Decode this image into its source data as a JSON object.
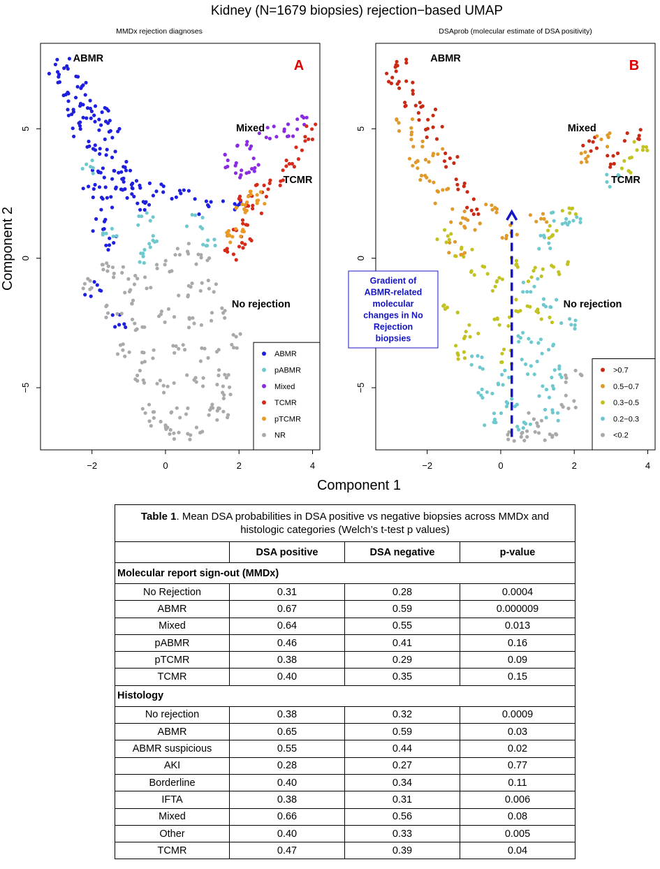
{
  "figure": {
    "title": "Kidney (N=1679 biopsies) rejection−based UMAP",
    "shared_xlabel": "Component 1",
    "shared_ylabel": "Component 2"
  },
  "chart_data": [
    {
      "type": "scatter",
      "panel_letter": "A",
      "subtitle": "MMDx rejection diagnoses",
      "xlabel": "Component 1",
      "ylabel": "Component 2",
      "xlim": [
        -3.4,
        4.2
      ],
      "ylim": [
        -7.4,
        8.3
      ],
      "xticks": [
        -2,
        0,
        2,
        4
      ],
      "yticks": [
        -5,
        0,
        5
      ],
      "grid": false,
      "legend_position": "bottom-right",
      "annotations": [
        "ABMR",
        "Mixed",
        "TCMR",
        "No rejection"
      ],
      "legend": [
        {
          "label": "ABMR",
          "color": "#1f1fe0"
        },
        {
          "label": "pABMR",
          "color": "#6ec9cf"
        },
        {
          "label": "Mixed",
          "color": "#8a2be2"
        },
        {
          "label": "TCMR",
          "color": "#d62a1a"
        },
        {
          "label": "pTCMR",
          "color": "#e89a24"
        },
        {
          "label": "NR",
          "color": "#a9a9a9"
        }
      ],
      "clusters": [
        {
          "group": "ABMR",
          "points": [
            [
              -3.0,
              6.9
            ],
            [
              -2.8,
              7.5
            ],
            [
              -2.6,
              6.4
            ],
            [
              -2.4,
              6.8
            ],
            [
              -2.6,
              5.8
            ],
            [
              -2.2,
              6.1
            ],
            [
              -2.0,
              5.4
            ],
            [
              -1.8,
              5.7
            ],
            [
              -1.6,
              5.1
            ],
            [
              -1.4,
              4.7
            ],
            [
              -2.4,
              5.0
            ],
            [
              -2.0,
              4.4
            ],
            [
              -1.6,
              4.0
            ],
            [
              -1.2,
              3.6
            ],
            [
              -1.0,
              3.1
            ],
            [
              -0.8,
              2.7
            ],
            [
              -1.8,
              3.4
            ],
            [
              -1.4,
              2.8
            ],
            [
              -1.0,
              2.4
            ],
            [
              -2.0,
              2.6
            ],
            [
              -1.6,
              2.1
            ],
            [
              -1.8,
              1.3
            ],
            [
              -1.4,
              0.6
            ],
            [
              -0.6,
              2.1
            ],
            [
              -0.2,
              2.6
            ],
            [
              0.4,
              2.5
            ],
            [
              1.0,
              2.0
            ],
            [
              1.8,
              2.1
            ],
            [
              -2.0,
              -1.2
            ],
            [
              -1.2,
              -2.4
            ]
          ]
        },
        {
          "group": "pABMR",
          "points": [
            [
              -1.5,
              1.1
            ],
            [
              -0.5,
              1.5
            ],
            [
              -0.2,
              0.7
            ],
            [
              0.8,
              1.4
            ],
            [
              -0.6,
              0.1
            ],
            [
              1.2,
              0.5
            ],
            [
              -2.2,
              3.5
            ]
          ]
        },
        {
          "group": "Mixed",
          "points": [
            [
              1.8,
              3.8
            ],
            [
              2.1,
              4.4
            ],
            [
              2.3,
              3.6
            ],
            [
              2.8,
              4.9
            ],
            [
              3.3,
              5.0
            ],
            [
              3.8,
              5.2
            ],
            [
              2.0,
              3.4
            ]
          ]
        },
        {
          "group": "TCMR",
          "points": [
            [
              2.2,
              2.2
            ],
            [
              2.6,
              2.6
            ],
            [
              3.0,
              3.1
            ],
            [
              3.4,
              3.7
            ],
            [
              3.8,
              4.4
            ],
            [
              4.0,
              5.0
            ],
            [
              2.0,
              1.2
            ],
            [
              2.1,
              0.6
            ],
            [
              1.8,
              0.2
            ],
            [
              2.4,
              2.0
            ]
          ]
        },
        {
          "group": "pTCMR",
          "points": [
            [
              2.0,
              2.0
            ],
            [
              2.3,
              2.3
            ],
            [
              1.6,
              1.0
            ],
            [
              1.9,
              0.9
            ],
            [
              2.5,
              2.4
            ]
          ]
        },
        {
          "group": "NR",
          "points": [
            [
              -2.0,
              -1.0
            ],
            [
              -1.6,
              -0.3
            ],
            [
              -1.2,
              -0.6
            ],
            [
              -0.6,
              -0.9
            ],
            [
              0.0,
              -0.3
            ],
            [
              0.6,
              -1.2
            ],
            [
              1.2,
              -1.0
            ],
            [
              -1.4,
              -2.0
            ],
            [
              -0.8,
              -2.6
            ],
            [
              0.0,
              -2.2
            ],
            [
              0.8,
              -2.4
            ],
            [
              1.4,
              -2.2
            ],
            [
              -1.2,
              -3.5
            ],
            [
              -0.4,
              -3.8
            ],
            [
              0.4,
              -3.4
            ],
            [
              1.2,
              -3.7
            ],
            [
              1.8,
              -3.2
            ],
            [
              -0.8,
              -4.6
            ],
            [
              0.0,
              -5.0
            ],
            [
              0.8,
              -4.7
            ],
            [
              1.6,
              -4.6
            ],
            [
              -0.4,
              -5.9
            ],
            [
              0.4,
              -6.0
            ],
            [
              1.2,
              -5.8
            ],
            [
              0.2,
              -6.8
            ],
            [
              0.8,
              -6.7
            ],
            [
              -0.2,
              -6.5
            ],
            [
              1.6,
              -6.0
            ],
            [
              1.8,
              -5.2
            ],
            [
              -1.0,
              -1.5
            ],
            [
              0.4,
              0.3
            ],
            [
              1.0,
              0.0
            ]
          ]
        }
      ]
    },
    {
      "type": "scatter",
      "panel_letter": "B",
      "subtitle": "DSAprob (molecular estimate of DSA positivity)",
      "xlabel": "Component 1",
      "ylabel": "Component 2",
      "xlim": [
        -3.4,
        4.2
      ],
      "ylim": [
        -7.4,
        8.3
      ],
      "xticks": [
        -2,
        0,
        2,
        4
      ],
      "yticks": [
        -5,
        0,
        5
      ],
      "grid": false,
      "legend_position": "bottom-right",
      "annotations": [
        "ABMR",
        "Mixed",
        "TCMR",
        "No rejection"
      ],
      "callout": "Gradient of ABMR-related molecular changes in No Rejection biopsies",
      "arrow": {
        "from": [
          0.3,
          -6.9
        ],
        "to": [
          0.3,
          1.8
        ],
        "style": "dashed"
      },
      "legend": [
        {
          "label": ">0.7",
          "color": "#c82a14"
        },
        {
          "label": "0.5−0.7",
          "color": "#df9a2a"
        },
        {
          "label": "0.3−0.5",
          "color": "#c2c221"
        },
        {
          "label": "0.2−0.3",
          "color": "#6ec9cf"
        },
        {
          "label": "<0.2",
          "color": "#a9a9a9"
        }
      ],
      "clusters": [
        {
          "group": ">0.7",
          "points": [
            [
              -3.0,
              7.0
            ],
            [
              -2.8,
              7.5
            ],
            [
              -2.6,
              6.6
            ],
            [
              -2.4,
              6.0
            ],
            [
              -2.0,
              5.6
            ],
            [
              -1.8,
              4.9
            ],
            [
              -1.4,
              3.8
            ],
            [
              -1.0,
              2.8
            ],
            [
              -0.8,
              2.0
            ],
            [
              2.4,
              4.4
            ],
            [
              3.0,
              3.8
            ],
            [
              3.6,
              4.8
            ]
          ]
        },
        {
          "group": "0.5−0.7",
          "points": [
            [
              -2.6,
              5.2
            ],
            [
              -2.2,
              4.6
            ],
            [
              -1.8,
              4.0
            ],
            [
              -2.0,
              3.2
            ],
            [
              -1.6,
              2.4
            ],
            [
              -1.2,
              1.6
            ],
            [
              -0.8,
              1.2
            ],
            [
              -0.2,
              2.0
            ],
            [
              0.2,
              1.0
            ],
            [
              -1.2,
              0.4
            ],
            [
              1.0,
              1.6
            ],
            [
              2.2,
              4.0
            ],
            [
              2.8,
              4.6
            ],
            [
              -2.4,
              3.6
            ]
          ]
        },
        {
          "group": "0.3−0.5",
          "points": [
            [
              -1.6,
              0.9
            ],
            [
              -1.0,
              0.2
            ],
            [
              -0.6,
              -0.5
            ],
            [
              -0.2,
              -1.0
            ],
            [
              0.4,
              -0.2
            ],
            [
              1.0,
              -0.6
            ],
            [
              1.4,
              1.0
            ],
            [
              1.8,
              2.0
            ],
            [
              -1.4,
              -2.0
            ],
            [
              -0.8,
              -2.8
            ],
            [
              0.0,
              -2.5
            ],
            [
              0.6,
              -1.8
            ],
            [
              1.2,
              -2.2
            ],
            [
              -1.2,
              -3.6
            ],
            [
              0.2,
              -3.8
            ],
            [
              3.4,
              3.6
            ],
            [
              3.8,
              4.2
            ],
            [
              -2.0,
              -1.2
            ],
            [
              1.6,
              -0.4
            ]
          ]
        },
        {
          "group": "0.2−0.3",
          "points": [
            [
              1.6,
              1.6
            ],
            [
              1.2,
              0.6
            ],
            [
              0.8,
              -1.0
            ],
            [
              1.4,
              -1.8
            ],
            [
              1.8,
              -2.6
            ],
            [
              0.6,
              -3.0
            ],
            [
              1.2,
              -3.4
            ],
            [
              -0.6,
              -4.0
            ],
            [
              0.0,
              -4.6
            ],
            [
              0.8,
              -4.2
            ],
            [
              1.6,
              -4.4
            ],
            [
              -0.4,
              -5.2
            ],
            [
              0.4,
              -5.6
            ],
            [
              1.2,
              -5.2
            ],
            [
              -0.2,
              -6.2
            ],
            [
              0.6,
              -6.6
            ],
            [
              1.4,
              -6.0
            ],
            [
              2.0,
              1.4
            ],
            [
              3.0,
              3.0
            ]
          ]
        },
        {
          "group": "<0.2",
          "points": [
            [
              0.8,
              -6.9
            ],
            [
              1.0,
              -6.2
            ],
            [
              1.4,
              -6.8
            ],
            [
              0.4,
              -6.9
            ],
            [
              1.8,
              -5.6
            ],
            [
              2.0,
              -4.6
            ]
          ]
        }
      ]
    }
  ],
  "table": {
    "caption_bold": "Table 1",
    "caption_rest": ". Mean DSA probabilities in DSA positive vs negative biopsies across MMDx and histologic categories (Welch’s t-test p values)",
    "columns": [
      "",
      "DSA positive",
      "DSA negative",
      "p-value"
    ],
    "sections": [
      {
        "title": "Molecular report sign-out (MMDx)",
        "rows": [
          [
            "No Rejection",
            "0.31",
            "0.28",
            "0.0004"
          ],
          [
            "ABMR",
            "0.67",
            "0.59",
            "0.000009"
          ],
          [
            "Mixed",
            "0.64",
            "0.55",
            "0.013"
          ],
          [
            "pABMR",
            "0.46",
            "0.41",
            "0.16"
          ],
          [
            "pTCMR",
            "0.38",
            "0.29",
            "0.09"
          ],
          [
            "TCMR",
            "0.40",
            "0.35",
            "0.15"
          ]
        ]
      },
      {
        "title": "Histology",
        "rows": [
          [
            "No rejection",
            "0.38",
            "0.32",
            "0.0009"
          ],
          [
            "ABMR",
            "0.65",
            "0.59",
            "0.03"
          ],
          [
            "ABMR suspicious",
            "0.55",
            "0.44",
            "0.02"
          ],
          [
            "AKI",
            "0.28",
            "0.27",
            "0.77"
          ],
          [
            "Borderline",
            "0.40",
            "0.34",
            "0.11"
          ],
          [
            "IFTA",
            "0.38",
            "0.31",
            "0.006"
          ],
          [
            "Mixed",
            "0.66",
            "0.56",
            "0.08"
          ],
          [
            "Other",
            "0.40",
            "0.33",
            "0.005"
          ],
          [
            "TCMR",
            "0.47",
            "0.39",
            "0.04"
          ]
        ]
      }
    ]
  }
}
